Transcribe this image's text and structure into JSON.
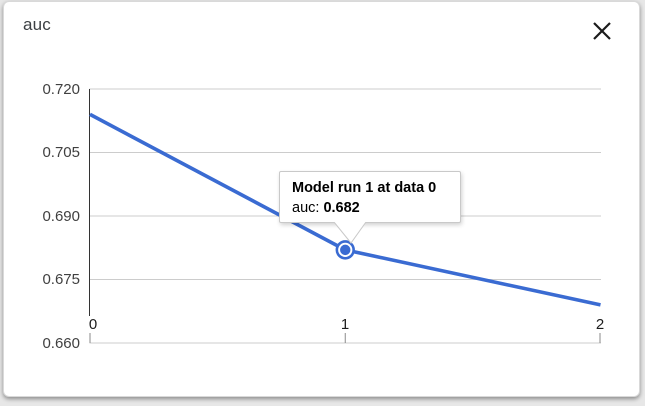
{
  "header": {
    "title": "auc"
  },
  "chart_data": {
    "type": "line",
    "title": "auc",
    "x": [
      0,
      1,
      2
    ],
    "series": [
      {
        "name": "auc",
        "values": [
          0.714,
          0.682,
          0.669
        ],
        "color": "#3a6bd2"
      }
    ],
    "highlighted_point": {
      "x": 1,
      "value": 0.682
    },
    "xlabel": "",
    "ylabel": "",
    "ylim": [
      0.66,
      0.72
    ],
    "xticks": [
      "0",
      "1",
      "2"
    ],
    "yticks": [
      "0.720",
      "0.705",
      "0.690",
      "0.675",
      "0.660"
    ],
    "grid": true,
    "legend": "none",
    "grid_color": "#cccccc",
    "axis_line_color": "#333333",
    "tick_color": "#8a8a8a"
  },
  "tooltip": {
    "title": "Model run 1 at data 0",
    "metric_label": "auc:",
    "metric_value": "0.682"
  }
}
